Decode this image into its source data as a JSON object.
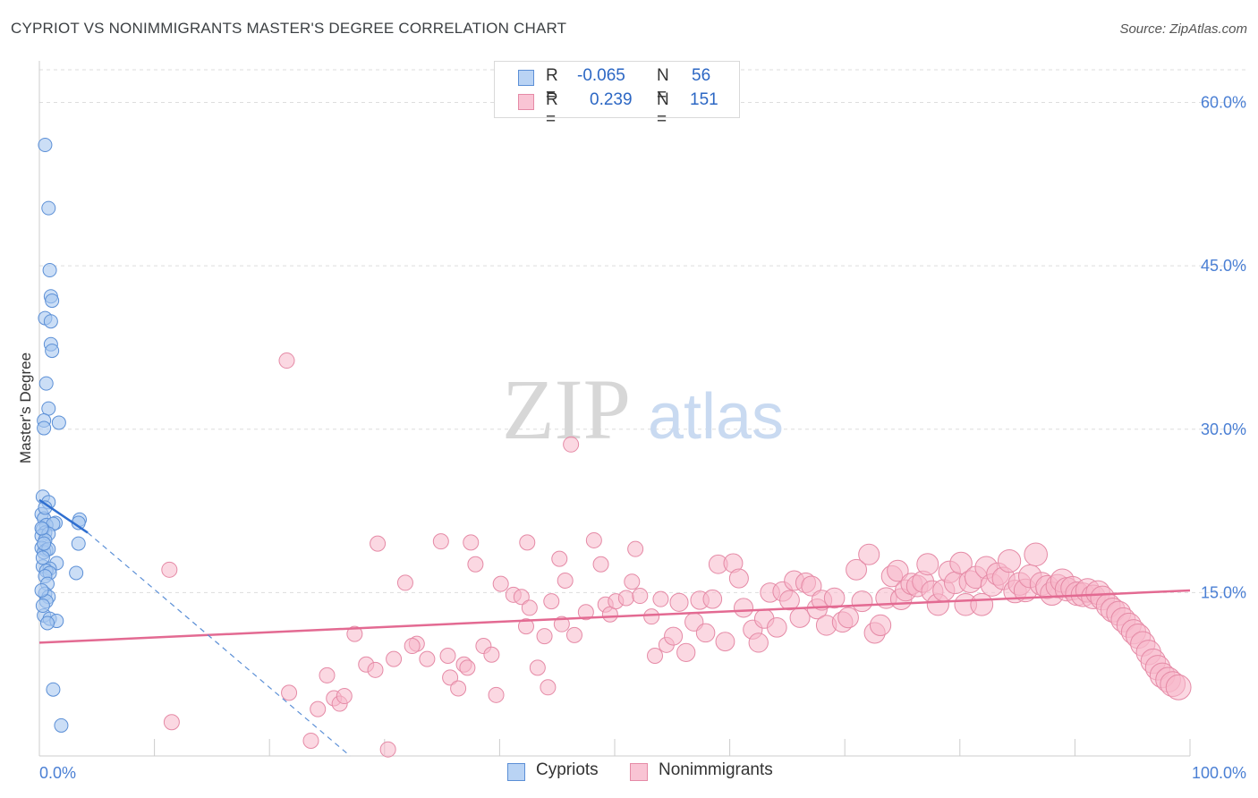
{
  "title": "CYPRIOT VS NONIMMIGRANTS MASTER'S DEGREE CORRELATION CHART",
  "source": "Source: ZipAtlas.com",
  "watermark": {
    "zip": "ZIP",
    "atlas": "atlas"
  },
  "legend_top": {
    "rows": [
      {
        "r_label": "R =",
        "r_value": "-0.065",
        "n_label": "N =",
        "n_value": "56"
      },
      {
        "r_label": "R =",
        "r_value": "0.239",
        "n_label": "N =",
        "n_value": "151"
      }
    ]
  },
  "legend_bottom": {
    "cypriots": "Cypriots",
    "nonimmigrants": "Nonimmigrants"
  },
  "colors": {
    "blue_fill": "#a9c8f0",
    "blue_stroke": "#5b8fd6",
    "blue_line": "#2f6fd0",
    "pink_fill": "#f7b8cb",
    "pink_stroke": "#e58aa6",
    "pink_line": "#e36a92",
    "axis_text": "#4a7fd4",
    "grid": "#dddddd"
  },
  "chart_data": {
    "type": "scatter",
    "title": "CYPRIOT VS NONIMMIGRANTS MASTER'S DEGREE CORRELATION CHART",
    "xlabel": "",
    "ylabel": "Master's Degree",
    "xlim": [
      0,
      100
    ],
    "ylim": [
      0,
      63
    ],
    "x_tick_labels": [
      "0.0%",
      "100.0%"
    ],
    "y_ticks": [
      15,
      30,
      45,
      60
    ],
    "y_tick_labels": [
      "15.0%",
      "30.0%",
      "45.0%",
      "60.0%"
    ],
    "series": [
      {
        "name": "Cypriots",
        "r": -0.065,
        "n": 56,
        "trend": {
          "x0": 0,
          "y0": 23.5,
          "x1": 4.2,
          "y1": 20.5
        },
        "trend_ext": {
          "x0": 4.2,
          "y0": 20.5,
          "x1": 27,
          "y1": 0
        },
        "points": [
          [
            0.5,
            56.1
          ],
          [
            0.8,
            50.3
          ],
          [
            0.9,
            44.6
          ],
          [
            1.0,
            42.2
          ],
          [
            1.1,
            41.8
          ],
          [
            0.5,
            40.2
          ],
          [
            1.0,
            39.9
          ],
          [
            1.0,
            37.8
          ],
          [
            1.1,
            37.2
          ],
          [
            0.6,
            34.2
          ],
          [
            0.8,
            31.9
          ],
          [
            0.4,
            30.8
          ],
          [
            1.7,
            30.6
          ],
          [
            0.4,
            30.1
          ],
          [
            0.3,
            23.8
          ],
          [
            0.8,
            23.3
          ],
          [
            0.2,
            22.2
          ],
          [
            0.4,
            21.8
          ],
          [
            1.4,
            21.4
          ],
          [
            3.5,
            21.7
          ],
          [
            0.6,
            21.2
          ],
          [
            1.2,
            21.3
          ],
          [
            3.4,
            21.4
          ],
          [
            0.3,
            20.8
          ],
          [
            0.5,
            20.5
          ],
          [
            0.2,
            20.2
          ],
          [
            0.8,
            20.4
          ],
          [
            0.5,
            19.8
          ],
          [
            3.4,
            19.5
          ],
          [
            0.2,
            19.1
          ],
          [
            0.6,
            18.9
          ],
          [
            0.4,
            18.7
          ],
          [
            0.8,
            19.0
          ],
          [
            1.5,
            17.7
          ],
          [
            0.3,
            17.4
          ],
          [
            0.9,
            17.2
          ],
          [
            0.6,
            17.0
          ],
          [
            0.9,
            16.8
          ],
          [
            3.2,
            16.8
          ],
          [
            0.5,
            16.5
          ],
          [
            0.7,
            15.8
          ],
          [
            0.5,
            14.9
          ],
          [
            0.8,
            14.6
          ],
          [
            0.6,
            14.2
          ],
          [
            0.4,
            12.9
          ],
          [
            0.9,
            12.6
          ],
          [
            1.5,
            12.4
          ],
          [
            0.7,
            12.2
          ],
          [
            1.2,
            6.1
          ],
          [
            1.9,
            2.8
          ],
          [
            0.3,
            13.8
          ],
          [
            0.2,
            15.2
          ],
          [
            0.3,
            18.2
          ],
          [
            0.4,
            19.5
          ],
          [
            0.2,
            20.9
          ],
          [
            0.5,
            22.8
          ]
        ]
      },
      {
        "name": "Nonimmigrants",
        "r": 0.239,
        "n": 151,
        "trend": {
          "x0": 0,
          "y0": 10.4,
          "x1": 100,
          "y1": 15.2
        },
        "points": [
          [
            21.5,
            36.3
          ],
          [
            46.2,
            28.6
          ],
          [
            11.5,
            3.1
          ],
          [
            11.3,
            17.1
          ],
          [
            23.6,
            1.4
          ],
          [
            30.3,
            0.6
          ],
          [
            21.7,
            5.8
          ],
          [
            24.2,
            4.3
          ],
          [
            25.6,
            5.3
          ],
          [
            26.1,
            4.8
          ],
          [
            25.0,
            7.4
          ],
          [
            26.5,
            5.5
          ],
          [
            28.4,
            8.4
          ],
          [
            29.2,
            7.9
          ],
          [
            27.4,
            11.2
          ],
          [
            30.8,
            8.9
          ],
          [
            32.8,
            10.3
          ],
          [
            32.4,
            10.1
          ],
          [
            33.7,
            8.9
          ],
          [
            35.5,
            9.2
          ],
          [
            35.7,
            7.2
          ],
          [
            36.4,
            6.2
          ],
          [
            36.9,
            8.4
          ],
          [
            37.2,
            8.1
          ],
          [
            38.6,
            10.1
          ],
          [
            39.3,
            9.3
          ],
          [
            39.7,
            5.6
          ],
          [
            34.9,
            19.7
          ],
          [
            29.4,
            19.5
          ],
          [
            37.5,
            19.6
          ],
          [
            42.4,
            19.6
          ],
          [
            48.2,
            19.8
          ],
          [
            51.8,
            19.0
          ],
          [
            31.8,
            15.9
          ],
          [
            37.9,
            17.6
          ],
          [
            40.1,
            15.8
          ],
          [
            41.2,
            14.8
          ],
          [
            41.9,
            14.6
          ],
          [
            42.3,
            11.9
          ],
          [
            42.6,
            13.6
          ],
          [
            43.9,
            11.0
          ],
          [
            43.3,
            8.1
          ],
          [
            44.2,
            6.3
          ],
          [
            45.2,
            18.1
          ],
          [
            45.7,
            16.1
          ],
          [
            44.5,
            14.2
          ],
          [
            45.4,
            12.1
          ],
          [
            46.5,
            11.1
          ],
          [
            47.5,
            13.2
          ],
          [
            48.8,
            17.6
          ],
          [
            49.2,
            13.9
          ],
          [
            49.6,
            13.0
          ],
          [
            50.1,
            14.2
          ],
          [
            51.0,
            14.5
          ],
          [
            51.5,
            16.0
          ],
          [
            52.2,
            14.7
          ],
          [
            53.2,
            12.8
          ],
          [
            53.5,
            9.2
          ],
          [
            54.0,
            14.4
          ],
          [
            54.5,
            10.2
          ],
          [
            55.1,
            11.0
          ],
          [
            55.6,
            14.1
          ],
          [
            56.2,
            9.5
          ],
          [
            56.9,
            12.3
          ],
          [
            57.4,
            14.3
          ],
          [
            57.9,
            11.3
          ],
          [
            58.5,
            14.4
          ],
          [
            59.0,
            17.6
          ],
          [
            59.6,
            10.5
          ],
          [
            60.3,
            17.7
          ],
          [
            60.8,
            16.3
          ],
          [
            61.2,
            13.6
          ],
          [
            62.0,
            11.6
          ],
          [
            62.5,
            10.4
          ],
          [
            63.0,
            12.6
          ],
          [
            63.5,
            15.0
          ],
          [
            64.1,
            11.8
          ],
          [
            64.6,
            15.1
          ],
          [
            65.2,
            14.3
          ],
          [
            65.6,
            16.1
          ],
          [
            66.1,
            12.7
          ],
          [
            66.6,
            15.9
          ],
          [
            67.1,
            15.6
          ],
          [
            67.6,
            13.5
          ],
          [
            68.0,
            14.3
          ],
          [
            68.4,
            12.0
          ],
          [
            69.1,
            14.5
          ],
          [
            69.8,
            12.3
          ],
          [
            70.3,
            12.7
          ],
          [
            71.0,
            17.1
          ],
          [
            71.5,
            14.2
          ],
          [
            72.1,
            18.5
          ],
          [
            72.6,
            11.3
          ],
          [
            73.1,
            12.0
          ],
          [
            73.6,
            14.5
          ],
          [
            74.1,
            16.5
          ],
          [
            74.6,
            17.0
          ],
          [
            74.9,
            14.4
          ],
          [
            75.3,
            15.2
          ],
          [
            75.8,
            15.8
          ],
          [
            76.3,
            15.6
          ],
          [
            76.8,
            16.0
          ],
          [
            77.2,
            17.6
          ],
          [
            77.6,
            15.1
          ],
          [
            78.1,
            13.9
          ],
          [
            78.6,
            15.2
          ],
          [
            79.1,
            16.9
          ],
          [
            79.6,
            15.9
          ],
          [
            80.1,
            17.7
          ],
          [
            80.5,
            13.9
          ],
          [
            80.9,
            16.0
          ],
          [
            81.4,
            16.4
          ],
          [
            81.9,
            13.9
          ],
          [
            82.3,
            17.3
          ],
          [
            82.8,
            15.7
          ],
          [
            83.3,
            16.7
          ],
          [
            83.8,
            16.3
          ],
          [
            84.3,
            17.9
          ],
          [
            84.8,
            15.1
          ],
          [
            85.2,
            15.8
          ],
          [
            85.7,
            15.2
          ],
          [
            86.1,
            16.5
          ],
          [
            86.6,
            18.5
          ],
          [
            87.1,
            15.8
          ],
          [
            87.6,
            15.5
          ],
          [
            88.0,
            14.9
          ],
          [
            88.5,
            15.6
          ],
          [
            88.9,
            16.1
          ],
          [
            89.3,
            15.3
          ],
          [
            89.8,
            15.4
          ],
          [
            90.2,
            14.9
          ],
          [
            90.7,
            14.8
          ],
          [
            91.1,
            15.2
          ],
          [
            91.6,
            14.6
          ],
          [
            92.0,
            15.0
          ],
          [
            92.4,
            14.5
          ],
          [
            92.9,
            13.8
          ],
          [
            93.3,
            13.4
          ],
          [
            93.8,
            13.1
          ],
          [
            94.2,
            12.5
          ],
          [
            94.7,
            12.0
          ],
          [
            95.1,
            11.4
          ],
          [
            95.5,
            11.0
          ],
          [
            95.9,
            10.3
          ],
          [
            96.4,
            9.5
          ],
          [
            96.8,
            8.7
          ],
          [
            97.2,
            8.1
          ],
          [
            97.6,
            7.4
          ],
          [
            98.1,
            7.0
          ],
          [
            98.5,
            6.6
          ],
          [
            99.0,
            6.3
          ]
        ]
      }
    ]
  }
}
